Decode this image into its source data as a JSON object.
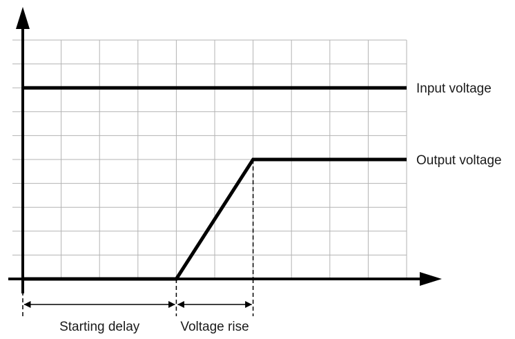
{
  "chart_data": {
    "type": "line",
    "title": "",
    "xlabel": "",
    "ylabel": "",
    "grid": true,
    "grid_divisions": {
      "x": 10,
      "y": 10
    },
    "xlim": [
      0,
      10
    ],
    "ylim": [
      0,
      10
    ],
    "series": [
      {
        "name": "Input voltage",
        "x": [
          0,
          10
        ],
        "y": [
          8,
          8
        ]
      },
      {
        "name": "Output voltage",
        "x": [
          0,
          4,
          6,
          10
        ],
        "y": [
          0,
          0,
          5,
          5
        ]
      }
    ],
    "intervals": [
      {
        "label": "Starting delay",
        "from": 0,
        "to": 4
      },
      {
        "label": "Voltage rise",
        "from": 4,
        "to": 6
      }
    ],
    "colors": {
      "line": "#000000",
      "grid": "#b3b3b3",
      "text": "#1a1a1a"
    }
  }
}
